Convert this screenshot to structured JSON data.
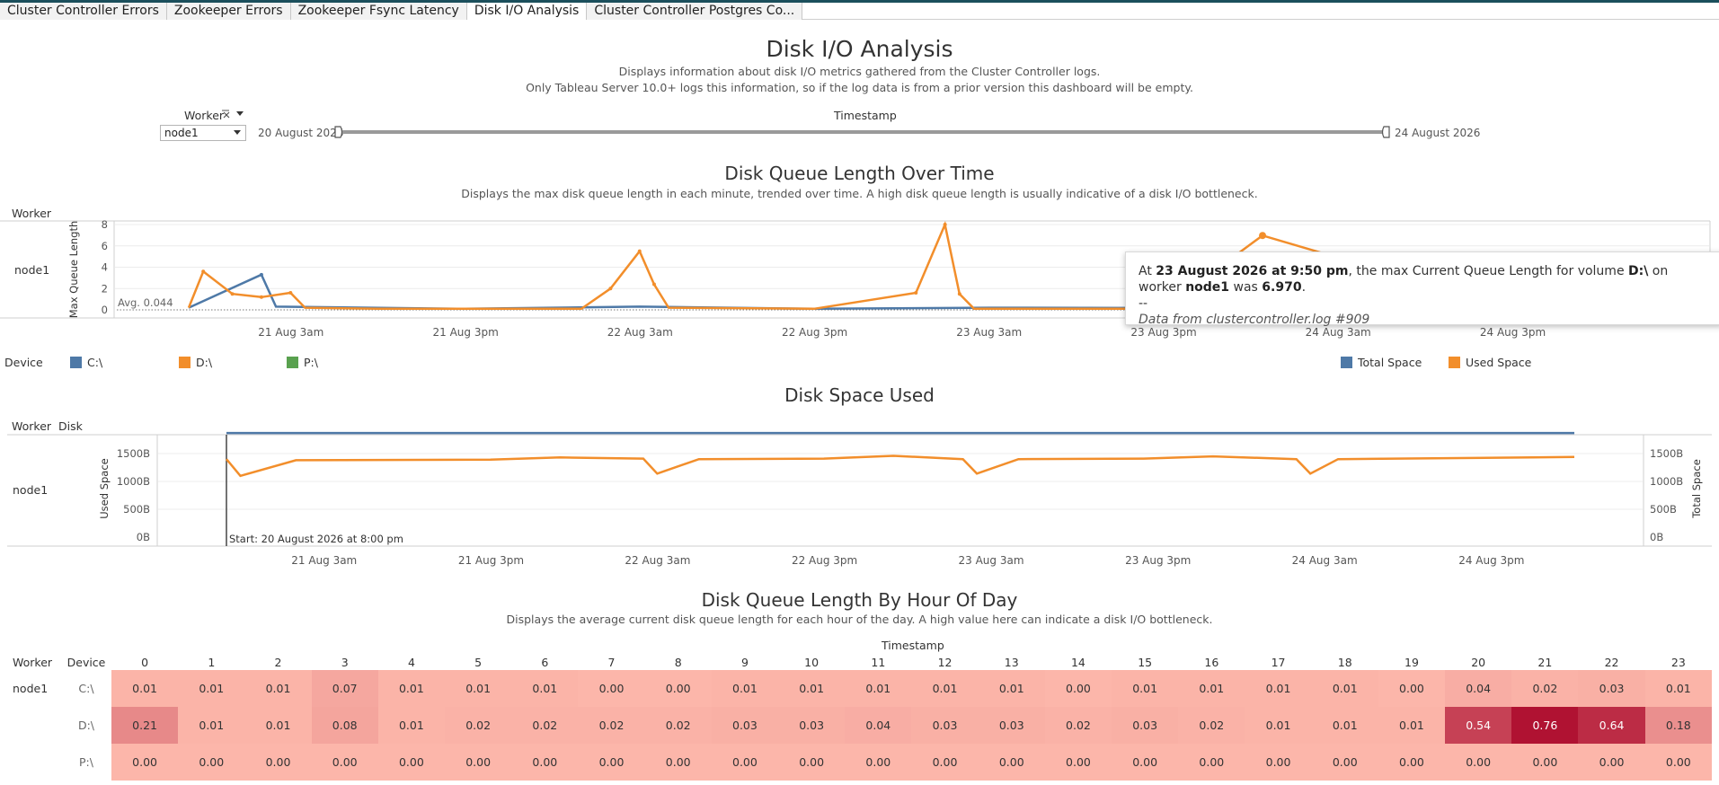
{
  "tabs": [
    {
      "label": "Cluster Controller Errors"
    },
    {
      "label": "Zookeeper Errors"
    },
    {
      "label": "Zookeeper Fsync Latency"
    },
    {
      "label": "Disk I/O Analysis"
    },
    {
      "label": "Cluster Controller Postgres Co..."
    }
  ],
  "active_tab": "Disk I/O Analysis",
  "header": {
    "title": "Disk I/O Analysis",
    "desc1": "Displays information about disk I/O metrics gathered from the Cluster Controller logs.",
    "desc2": "Only Tableau Server 10.0+ logs this information, so if the log data is from a prior version this dashboard will be empty."
  },
  "filters": {
    "worker_label": "Worker",
    "worker_value": "node1",
    "timestamp_label": "Timestamp",
    "range_start": "20 August 2026",
    "range_end": "24 August 2026"
  },
  "queue_chart": {
    "title": "Disk Queue Length Over Time",
    "subtitle": "Displays the max disk queue length in each minute, trended over time.  A high disk queue length is usually indicative of a disk I/O bottleneck.",
    "worker_header": "Worker",
    "row_label": "node1",
    "ylabel": "Max Queue Length",
    "avg_label": "Avg. 0.044",
    "yticks": [
      "8",
      "6",
      "4",
      "2",
      "0"
    ],
    "xticks": [
      "21 Aug 3am",
      "21 Aug 3pm",
      "22 Aug 3am",
      "22 Aug 3pm",
      "23 Aug 3am",
      "23 Aug 3pm",
      "24 Aug 3am",
      "24 Aug 3pm"
    ]
  },
  "tooltip": {
    "pre": "At ",
    "time": "23 August 2026 at 9:50 pm",
    "mid1": ", the max Current Queue Length for volume ",
    "volume": "D:\\",
    "mid2": " on worker ",
    "worker": "node1",
    "mid3": " was ",
    "value": "6.970",
    "end": ".",
    "sep": "--",
    "source": "Data from clustercontroller.log #909"
  },
  "device_legend": {
    "label": "Device",
    "items": [
      {
        "name": "C:\\",
        "color": "#4e79a7"
      },
      {
        "name": "D:\\",
        "color": "#f28e2b"
      },
      {
        "name": "P:\\",
        "color": "#59a14f"
      }
    ]
  },
  "space_legend": {
    "items": [
      {
        "name": "Total Space",
        "color": "#4e79a7"
      },
      {
        "name": "Used Space",
        "color": "#f28e2b"
      }
    ]
  },
  "space_chart": {
    "title": "Disk Space Used",
    "worker_header": "Worker",
    "disk_header": "Disk",
    "row_label": "node1",
    "ylabel_left": "Used Space",
    "ylabel_right": "Total Space",
    "yticks": [
      "1500B",
      "1000B",
      "500B",
      "0B"
    ],
    "start_label": "Start: 20 August 2026 at 8:00 pm",
    "xticks": [
      "21 Aug 3am",
      "21 Aug 3pm",
      "22 Aug 3am",
      "22 Aug 3pm",
      "23 Aug 3am",
      "23 Aug 3pm",
      "24 Aug 3am",
      "24 Aug 3pm"
    ]
  },
  "heatmap": {
    "title": "Disk Queue Length By Hour Of Day",
    "subtitle": "Displays the average current disk queue length for each hour of the day.  A high value here can indicate a disk I/O bottleneck.",
    "timestamp_label": "Timestamp",
    "worker_header": "Worker",
    "device_header": "Device",
    "worker": "node1",
    "hours": [
      "0",
      "1",
      "2",
      "3",
      "4",
      "5",
      "6",
      "7",
      "8",
      "9",
      "10",
      "11",
      "12",
      "13",
      "14",
      "15",
      "16",
      "17",
      "18",
      "19",
      "20",
      "21",
      "22",
      "23"
    ],
    "rows": [
      {
        "device": "C:\\",
        "values": [
          "0.01",
          "0.01",
          "0.01",
          "0.07",
          "0.01",
          "0.01",
          "0.01",
          "0.00",
          "0.00",
          "0.01",
          "0.01",
          "0.01",
          "0.01",
          "0.01",
          "0.00",
          "0.01",
          "0.01",
          "0.01",
          "0.01",
          "0.00",
          "0.04",
          "0.02",
          "0.03",
          "0.01"
        ]
      },
      {
        "device": "D:\\",
        "values": [
          "0.21",
          "0.01",
          "0.01",
          "0.08",
          "0.01",
          "0.02",
          "0.02",
          "0.02",
          "0.02",
          "0.03",
          "0.03",
          "0.04",
          "0.03",
          "0.03",
          "0.02",
          "0.03",
          "0.02",
          "0.01",
          "0.01",
          "0.01",
          "0.54",
          "0.76",
          "0.64",
          "0.18"
        ]
      },
      {
        "device": "P:\\",
        "values": [
          "0.00",
          "0.00",
          "0.00",
          "0.00",
          "0.00",
          "0.00",
          "0.00",
          "0.00",
          "0.00",
          "0.00",
          "0.00",
          "0.00",
          "0.00",
          "0.00",
          "0.00",
          "0.00",
          "0.00",
          "0.00",
          "0.00",
          "0.00",
          "0.00",
          "0.00",
          "0.00",
          "0.00"
        ]
      }
    ]
  },
  "chart_data": [
    {
      "type": "line",
      "title": "Disk Queue Length Over Time",
      "ylabel": "Max Queue Length",
      "ylim": [
        0,
        8
      ],
      "x_range": [
        "20 Aug 8pm",
        "24 Aug 9pm"
      ],
      "average": 0.044,
      "series": [
        {
          "name": "D:\\",
          "points": [
            [
              "20 Aug 8pm",
              0.2
            ],
            [
              "20 Aug 9pm",
              3.6
            ],
            [
              "20 Aug 11pm",
              1.5
            ],
            [
              "21 Aug 1am",
              1.2
            ],
            [
              "21 Aug 3am",
              1.6
            ],
            [
              "21 Aug 4am",
              0.2
            ],
            [
              "21 Aug 9am",
              0.1
            ],
            [
              "21 Aug 3pm",
              0.1
            ],
            [
              "21 Aug 11pm",
              0.1
            ],
            [
              "22 Aug 1am",
              2.0
            ],
            [
              "22 Aug 3am",
              5.5
            ],
            [
              "22 Aug 4am",
              2.4
            ],
            [
              "22 Aug 5am",
              0.2
            ],
            [
              "22 Aug 3pm",
              0.1
            ],
            [
              "22 Aug 10pm",
              1.6
            ],
            [
              "23 Aug 12am",
              8.0
            ],
            [
              "23 Aug 1am",
              1.5
            ],
            [
              "23 Aug 2am",
              0.1
            ],
            [
              "23 Aug 3pm",
              0.1
            ],
            [
              "23 Aug 9:50pm",
              6.97
            ],
            [
              "24 Aug 3pm",
              0.1
            ],
            [
              "24 Aug 9pm",
              0.1
            ]
          ]
        },
        {
          "name": "C:\\",
          "points": [
            [
              "20 Aug 8pm",
              0.2
            ],
            [
              "21 Aug 1am",
              3.3
            ],
            [
              "21 Aug 2am",
              0.3
            ],
            [
              "21 Aug 3pm",
              0.1
            ],
            [
              "22 Aug 3am",
              0.3
            ],
            [
              "22 Aug 3pm",
              0.1
            ],
            [
              "23 Aug 3am",
              0.2
            ],
            [
              "24 Aug 9pm",
              0.1
            ]
          ]
        }
      ]
    },
    {
      "type": "line",
      "title": "Disk Space Used",
      "ylabel": "Used Space",
      "y2label": "Total Space",
      "ylim": [
        0,
        2000
      ],
      "x_range": [
        "20 Aug 8pm",
        "24 Aug 9pm"
      ],
      "series": [
        {
          "name": "Total Space",
          "points": [
            [
              "20 Aug 8pm",
              1870
            ],
            [
              "24 Aug 9pm",
              1870
            ]
          ]
        },
        {
          "name": "Used Space",
          "points": [
            [
              "20 Aug 8pm",
              1400
            ],
            [
              "20 Aug 9pm",
              1100
            ],
            [
              "21 Aug 1am",
              1380
            ],
            [
              "21 Aug 3pm",
              1390
            ],
            [
              "21 Aug 8pm",
              1430
            ],
            [
              "22 Aug 2am",
              1410
            ],
            [
              "22 Aug 3am",
              1140
            ],
            [
              "22 Aug 6am",
              1400
            ],
            [
              "22 Aug 3pm",
              1410
            ],
            [
              "22 Aug 8pm",
              1460
            ],
            [
              "23 Aug 1am",
              1400
            ],
            [
              "23 Aug 2am",
              1140
            ],
            [
              "23 Aug 5am",
              1400
            ],
            [
              "23 Aug 2pm",
              1410
            ],
            [
              "23 Aug 7pm",
              1450
            ],
            [
              "24 Aug 1am",
              1400
            ],
            [
              "24 Aug 2am",
              1140
            ],
            [
              "24 Aug 4am",
              1400
            ],
            [
              "24 Aug 6pm",
              1430
            ],
            [
              "24 Aug 9pm",
              1440
            ]
          ]
        }
      ]
    },
    {
      "type": "heatmap",
      "title": "Disk Queue Length By Hour Of Day",
      "x": [
        "0",
        "1",
        "2",
        "3",
        "4",
        "5",
        "6",
        "7",
        "8",
        "9",
        "10",
        "11",
        "12",
        "13",
        "14",
        "15",
        "16",
        "17",
        "18",
        "19",
        "20",
        "21",
        "22",
        "23"
      ],
      "y": [
        "C:\\",
        "D:\\",
        "P:\\"
      ],
      "values": [
        [
          0.01,
          0.01,
          0.01,
          0.07,
          0.01,
          0.01,
          0.01,
          0.0,
          0.0,
          0.01,
          0.01,
          0.01,
          0.01,
          0.01,
          0.0,
          0.01,
          0.01,
          0.01,
          0.01,
          0.0,
          0.04,
          0.02,
          0.03,
          0.01
        ],
        [
          0.21,
          0.01,
          0.01,
          0.08,
          0.01,
          0.02,
          0.02,
          0.02,
          0.02,
          0.03,
          0.03,
          0.04,
          0.03,
          0.03,
          0.02,
          0.03,
          0.02,
          0.01,
          0.01,
          0.01,
          0.54,
          0.76,
          0.64,
          0.18
        ],
        [
          0.0,
          0.0,
          0.0,
          0.0,
          0.0,
          0.0,
          0.0,
          0.0,
          0.0,
          0.0,
          0.0,
          0.0,
          0.0,
          0.0,
          0.0,
          0.0,
          0.0,
          0.0,
          0.0,
          0.0,
          0.0,
          0.0,
          0.0,
          0.0
        ]
      ]
    }
  ]
}
